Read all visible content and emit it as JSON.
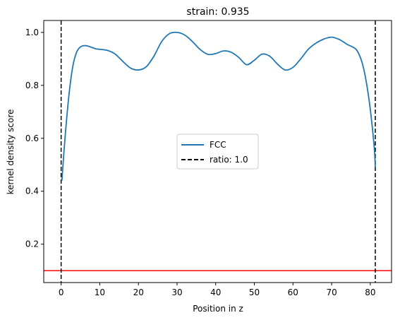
{
  "chart_data": {
    "type": "line",
    "title": "strain: 0.935",
    "xlabel": "Position in z",
    "ylabel": "kernel density score",
    "xlim": [
      -4.5,
      85.5
    ],
    "ylim": [
      0.055,
      1.045
    ],
    "xticks": [
      0,
      10,
      20,
      30,
      40,
      50,
      60,
      70,
      80
    ],
    "yticks": [
      0.2,
      0.4,
      0.6,
      0.8,
      1.0
    ],
    "ytick_labels": [
      "0.2",
      "0.4",
      "0.6",
      "0.8",
      "1.0"
    ],
    "grid": false,
    "legend_position": "center",
    "series": [
      {
        "name": "FCC",
        "color": "#1f77b4",
        "style": "solid",
        "x": [
          0.2,
          1,
          2,
          3,
          4,
          5,
          6,
          7,
          8,
          9,
          10,
          12,
          14,
          16,
          18,
          20,
          22,
          24,
          26,
          28,
          30,
          32,
          34,
          36,
          38,
          40,
          42,
          44,
          46,
          48,
          50,
          52,
          54,
          56,
          58,
          60,
          62,
          64,
          66,
          68,
          70,
          72,
          74,
          76,
          77,
          78,
          79,
          80,
          81,
          81.3
        ],
        "y": [
          0.44,
          0.6,
          0.76,
          0.87,
          0.925,
          0.945,
          0.95,
          0.948,
          0.943,
          0.938,
          0.936,
          0.932,
          0.918,
          0.89,
          0.865,
          0.858,
          0.87,
          0.91,
          0.965,
          0.995,
          1.0,
          0.99,
          0.965,
          0.935,
          0.917,
          0.92,
          0.93,
          0.925,
          0.905,
          0.878,
          0.895,
          0.918,
          0.91,
          0.88,
          0.858,
          0.868,
          0.9,
          0.937,
          0.96,
          0.975,
          0.982,
          0.973,
          0.955,
          0.94,
          0.92,
          0.88,
          0.81,
          0.71,
          0.57,
          0.49
        ]
      },
      {
        "name": "ratio: 1.0",
        "color": "#000000",
        "style": "dashed",
        "vertical_lines_x": [
          0.0,
          81.3
        ]
      }
    ],
    "hlines": [
      {
        "y": 0.1,
        "color": "#ff0000"
      }
    ]
  }
}
